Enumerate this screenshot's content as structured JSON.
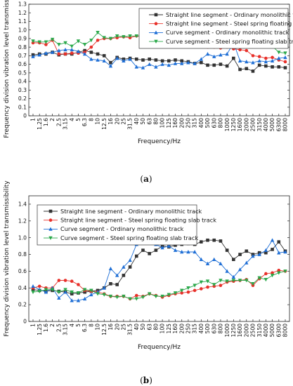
{
  "figure": {
    "panels": [
      {
        "label_prefix": "(",
        "label_letter": "a",
        "label_suffix": ")"
      },
      {
        "label_prefix": "(",
        "label_letter": "b",
        "label_suffix": ")"
      }
    ]
  },
  "chart_data": [
    {
      "type": "line",
      "xlabel": "Frequency/Hz",
      "ylabel": "Frequency division vibration level transmissibility",
      "ylim": [
        0,
        1.3
      ],
      "yticks": [
        "0",
        "0.1",
        "0.2",
        "0.3",
        "0.4",
        "0.5",
        "0.6",
        "0.7",
        "0.8",
        "0.9",
        "1.0",
        "1.1",
        "1.2",
        "1.3"
      ],
      "categories": [
        "1",
        "1.25",
        "1.6",
        "2",
        "2.5",
        "3.15",
        "4",
        "5",
        "6.3",
        "8",
        "10",
        "12.5",
        "16",
        "20",
        "25",
        "31.5",
        "40",
        "50",
        "63",
        "80",
        "100",
        "125",
        "160",
        "200",
        "250",
        "315",
        "400",
        "500",
        "630",
        "800",
        "1000",
        "1250",
        "1600",
        "2000",
        "2500",
        "3150",
        "4000",
        "5000",
        "6300",
        "8000"
      ],
      "legend_position": "top-right",
      "grid": false,
      "series": [
        {
          "name": "Straight line segment - Ordinary monolithic track",
          "color": "#333333",
          "marker": "square",
          "values": [
            0.71,
            0.72,
            0.72,
            0.74,
            0.71,
            0.72,
            0.72,
            0.74,
            0.76,
            0.74,
            0.72,
            0.7,
            0.62,
            0.68,
            0.66,
            0.67,
            0.66,
            0.65,
            0.66,
            0.65,
            0.64,
            0.64,
            0.65,
            0.64,
            0.63,
            0.61,
            0.62,
            0.59,
            0.59,
            0.6,
            0.58,
            0.67,
            0.54,
            0.55,
            0.52,
            0.59,
            0.58,
            0.57,
            0.57,
            0.56
          ]
        },
        {
          "name": "Straight line segment - Steel spring floating slab track",
          "color": "#e8302a",
          "marker": "circle",
          "values": [
            0.85,
            0.85,
            0.83,
            0.88,
            0.72,
            0.72,
            0.73,
            0.73,
            0.74,
            0.8,
            0.88,
            0.9,
            0.9,
            0.91,
            0.92,
            0.91,
            0.93,
            0.93,
            0.93,
            0.92,
            0.91,
            0.9,
            0.88,
            0.83,
            0.82,
            0.81,
            0.82,
            0.8,
            0.8,
            0.79,
            0.8,
            0.78,
            0.77,
            0.76,
            0.7,
            0.69,
            0.67,
            0.68,
            0.65,
            0.63
          ]
        },
        {
          "name": "Curve segment - Ordinary monolithic track",
          "color": "#1f6fd6",
          "marker": "triangle-up",
          "values": [
            0.69,
            0.71,
            0.73,
            0.74,
            0.76,
            0.77,
            0.77,
            0.75,
            0.72,
            0.66,
            0.65,
            0.64,
            0.58,
            0.67,
            0.64,
            0.66,
            0.57,
            0.56,
            0.6,
            0.57,
            0.6,
            0.59,
            0.61,
            0.61,
            0.62,
            0.61,
            0.66,
            0.72,
            0.69,
            0.71,
            0.72,
            0.85,
            0.64,
            0.63,
            0.62,
            0.64,
            0.63,
            0.64,
            0.67,
            0.68
          ]
        },
        {
          "name": "Curve segment - Steel spring floating slab track",
          "color": "#2aa84a",
          "marker": "triangle-down",
          "values": [
            0.87,
            0.86,
            0.86,
            0.89,
            0.83,
            0.85,
            0.81,
            0.87,
            0.83,
            0.88,
            0.97,
            0.91,
            0.9,
            0.93,
            0.92,
            0.93,
            0.93,
            0.93,
            0.93,
            0.91,
            0.9,
            0.88,
            0.87,
            0.81,
            0.81,
            0.82,
            0.85,
            0.85,
            0.84,
            0.84,
            0.81,
            0.88,
            0.84,
            0.87,
            0.84,
            0.81,
            0.81,
            0.81,
            0.74,
            0.73
          ]
        }
      ]
    },
    {
      "type": "line",
      "xlabel": "Frequency/Hz",
      "ylabel": "Frequency division vibration level transmissibility",
      "ylim": [
        0,
        1.5
      ],
      "yticks": [
        "0",
        "0.2",
        "0.4",
        "0.6",
        "0.8",
        "1.0",
        "1.2",
        "1.4"
      ],
      "categories": [
        "1",
        "1.25",
        "1.6",
        "2",
        "2.5",
        "3.15",
        "4",
        "5",
        "6.3",
        "8",
        "10",
        "12.5",
        "16",
        "20",
        "25",
        "31.5",
        "40",
        "50",
        "63",
        "80",
        "100",
        "125",
        "160",
        "200",
        "250",
        "315",
        "400",
        "500",
        "630",
        "800",
        "1000",
        "1250",
        "1600",
        "2000",
        "2500",
        "3150",
        "4000",
        "5000",
        "6300",
        "8000"
      ],
      "legend_position": "top-left",
      "grid": false,
      "series": [
        {
          "name": "Straight line segment - Ordinary monolithic track",
          "color": "#333333",
          "marker": "square",
          "values": [
            0.38,
            0.37,
            0.36,
            0.37,
            0.36,
            0.35,
            0.33,
            0.34,
            0.35,
            0.36,
            0.37,
            0.4,
            0.45,
            0.44,
            0.55,
            0.65,
            0.78,
            0.85,
            0.81,
            0.85,
            0.9,
            0.89,
            0.91,
            0.92,
            0.93,
            0.92,
            0.95,
            0.97,
            0.97,
            0.96,
            0.85,
            0.74,
            0.8,
            0.84,
            0.8,
            0.82,
            0.82,
            0.86,
            0.95,
            0.84
          ]
        },
        {
          "name": "Straight line segment - Steel spring floating slab track",
          "color": "#e8302a",
          "marker": "circle",
          "values": [
            0.4,
            0.42,
            0.4,
            0.4,
            0.49,
            0.49,
            0.48,
            0.44,
            0.37,
            0.36,
            0.35,
            0.33,
            0.3,
            0.3,
            0.3,
            0.27,
            0.31,
            0.3,
            0.33,
            0.31,
            0.29,
            0.31,
            0.33,
            0.34,
            0.35,
            0.37,
            0.39,
            0.41,
            0.42,
            0.43,
            0.47,
            0.48,
            0.49,
            0.5,
            0.43,
            0.51,
            0.57,
            0.58,
            0.61,
            0.6
          ]
        },
        {
          "name": "Curve segment - Ordinary monolithic track",
          "color": "#1f6fd6",
          "marker": "triangle-up",
          "values": [
            0.42,
            0.38,
            0.35,
            0.4,
            0.28,
            0.35,
            0.25,
            0.25,
            0.27,
            0.32,
            0.35,
            0.4,
            0.63,
            0.55,
            0.65,
            0.73,
            0.92,
            0.99,
            0.96,
            0.92,
            0.88,
            0.9,
            0.85,
            0.83,
            0.83,
            0.83,
            0.74,
            0.69,
            0.74,
            0.69,
            0.6,
            0.53,
            0.62,
            0.7,
            0.78,
            0.8,
            0.85,
            0.97,
            0.82,
            0.83
          ]
        },
        {
          "name": "Curve segment - Steel spring floating slab track",
          "color": "#2aa84a",
          "marker": "triangle-down",
          "values": [
            0.35,
            0.36,
            0.38,
            0.38,
            0.35,
            0.38,
            0.35,
            0.34,
            0.38,
            0.37,
            0.33,
            0.32,
            0.3,
            0.29,
            0.3,
            0.27,
            0.27,
            0.29,
            0.33,
            0.3,
            0.3,
            0.32,
            0.34,
            0.37,
            0.4,
            0.43,
            0.47,
            0.48,
            0.44,
            0.49,
            0.48,
            0.49,
            0.49,
            0.49,
            0.45,
            0.52,
            0.5,
            0.55,
            0.58,
            0.6
          ]
        }
      ]
    }
  ]
}
